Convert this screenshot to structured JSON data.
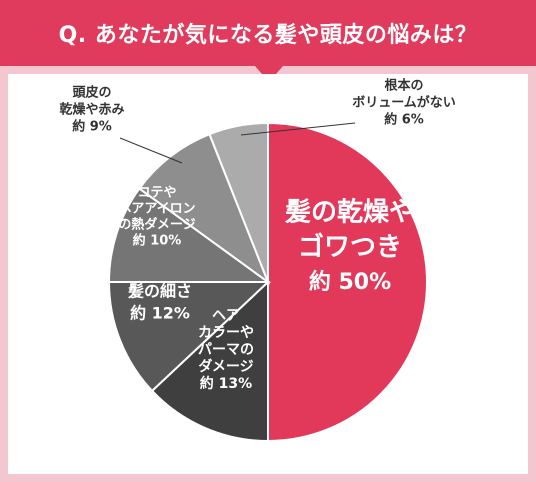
{
  "title": "Q. あなたが気になる髪や頭皮の悩みは？",
  "colors": {
    "header": "#e03a5c",
    "background": "#f4c6cf",
    "panel": "#ffffff",
    "slices": [
      "#e2395b",
      "#3f3f3f",
      "#585858",
      "#757575",
      "#8e8e8e",
      "#ababab"
    ]
  },
  "chart_data": {
    "type": "pie",
    "categories": [
      "髪の乾燥やゴワつき",
      "ヘアカラーやパーマのダメージ",
      "髪の細さ",
      "コテやヘアアイロンの熱ダメージ",
      "頭皮の乾燥や赤み",
      "根本のボリュームがない"
    ],
    "values": [
      50,
      13,
      12,
      10,
      9,
      6
    ],
    "labels": [
      [
        "髪の乾燥や",
        "ゴワつき",
        "約 50%"
      ],
      [
        "ヘア",
        "カラーや",
        "パーマの",
        "ダメージ",
        "約 13%"
      ],
      [
        "髪の細さ",
        "約 12%"
      ],
      [
        "コテや",
        "ヘアアイロン",
        "の熱ダメージ",
        "約 10%"
      ],
      [
        "頭皮の",
        "乾燥や赤み",
        "約 9%"
      ],
      [
        "根本の",
        "ボリュームがない",
        "約 6%"
      ]
    ]
  }
}
